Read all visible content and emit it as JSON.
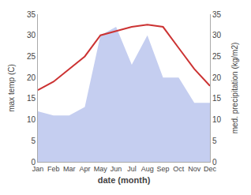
{
  "chart_data": {
    "type": "line",
    "xlabel": "date (month)",
    "ylabel": "max temp (C)",
    "y2label": "med. precipitation (kg/m2)",
    "categories": [
      "Jan",
      "Feb",
      "Mar",
      "Apr",
      "May",
      "Jun",
      "Jul",
      "Aug",
      "Sep",
      "Oct",
      "Nov",
      "Dec"
    ],
    "series": [
      {
        "type": "area",
        "axis": "y2",
        "color": "#c5cef0",
        "values": [
          12,
          11,
          11,
          13,
          30,
          32,
          23,
          30,
          20,
          20,
          14,
          14
        ]
      },
      {
        "type": "line",
        "color": "#cc3333",
        "values": [
          17,
          19,
          22,
          25,
          30,
          31,
          32,
          32.5,
          32,
          27,
          22,
          18
        ]
      }
    ],
    "ylim": [
      0,
      35
    ],
    "yticks": [
      0,
      5,
      10,
      15,
      20,
      25,
      30,
      35
    ],
    "y2lim": [
      0,
      35
    ],
    "y2ticks": [
      0,
      5,
      10,
      15,
      20,
      25,
      30,
      35
    ],
    "grid": false
  }
}
